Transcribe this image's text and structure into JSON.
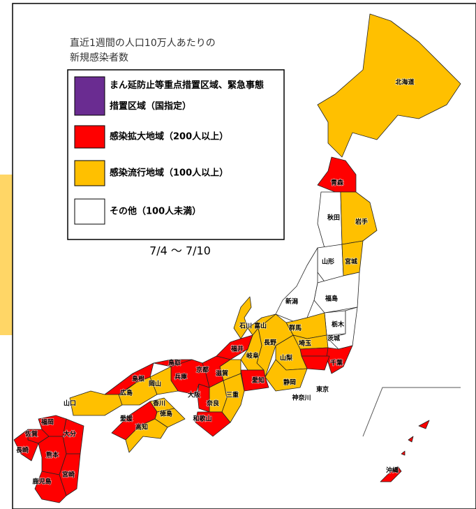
{
  "title_lines": [
    "直近1週間の人口10万人あたりの",
    "新規感染者数"
  ],
  "legend": [
    {
      "label_lines": [
        "まん延防止等重点措置区域、緊急事態",
        "措置区域（国指定）"
      ],
      "color": "#6a2c91"
    },
    {
      "label_lines": [
        "感染拡大地域（200人以上）"
      ],
      "color": "#ff0000"
    },
    {
      "label_lines": [
        "感染流行地域（100人以上）"
      ],
      "color": "#ffc000"
    },
    {
      "label_lines": [
        "その他（100人未満）"
      ],
      "color": "#ffffff"
    }
  ],
  "period": "7/4 〜 7/10",
  "prefectures": [
    {
      "label": "北海道",
      "level": 2
    },
    {
      "label": "青森",
      "level": 1
    },
    {
      "label": "秋田",
      "level": 3
    },
    {
      "label": "岩手",
      "level": 2
    },
    {
      "label": "山形",
      "level": 3
    },
    {
      "label": "宮城",
      "level": 2
    },
    {
      "label": "福島",
      "level": 3
    },
    {
      "label": "新潟",
      "level": 3
    },
    {
      "label": "栃木",
      "level": 3
    },
    {
      "label": "茨城",
      "level": 3
    },
    {
      "label": "群馬",
      "level": 2
    },
    {
      "label": "埼玉",
      "level": 2
    },
    {
      "label": "東京",
      "level": 1
    },
    {
      "label": "千葉",
      "level": 1
    },
    {
      "label": "神奈川",
      "level": 1
    },
    {
      "label": "山梨",
      "level": 2
    },
    {
      "label": "静岡",
      "level": 2
    },
    {
      "label": "長野",
      "level": 2
    },
    {
      "label": "富山",
      "level": 2
    },
    {
      "label": "石川",
      "level": 2
    },
    {
      "label": "福井",
      "level": 1
    },
    {
      "label": "岐阜",
      "level": 2
    },
    {
      "label": "愛知",
      "level": 1
    },
    {
      "label": "滋賀",
      "level": 2
    },
    {
      "label": "三重",
      "level": 2
    },
    {
      "label": "京都",
      "level": 1
    },
    {
      "label": "奈良",
      "level": 2
    },
    {
      "label": "大阪",
      "level": 1
    },
    {
      "label": "和歌山",
      "level": 1
    },
    {
      "label": "兵庫",
      "level": 1
    },
    {
      "label": "鳥取",
      "level": 1
    },
    {
      "label": "岡山",
      "level": 2
    },
    {
      "label": "島根",
      "level": 1
    },
    {
      "label": "広島",
      "level": 2
    },
    {
      "label": "山口",
      "level": 2
    },
    {
      "label": "香川",
      "level": 2
    },
    {
      "label": "徳島",
      "level": 2
    },
    {
      "label": "愛媛",
      "level": 1
    },
    {
      "label": "高知",
      "level": 2
    },
    {
      "label": "福岡",
      "level": 1
    },
    {
      "label": "佐賀",
      "level": 1
    },
    {
      "label": "長崎",
      "level": 1
    },
    {
      "label": "大分",
      "level": 1
    },
    {
      "label": "熊本",
      "level": 1
    },
    {
      "label": "宮崎",
      "level": 1
    },
    {
      "label": "鹿児島",
      "level": 1
    },
    {
      "label": "沖縄",
      "level": 1
    }
  ]
}
